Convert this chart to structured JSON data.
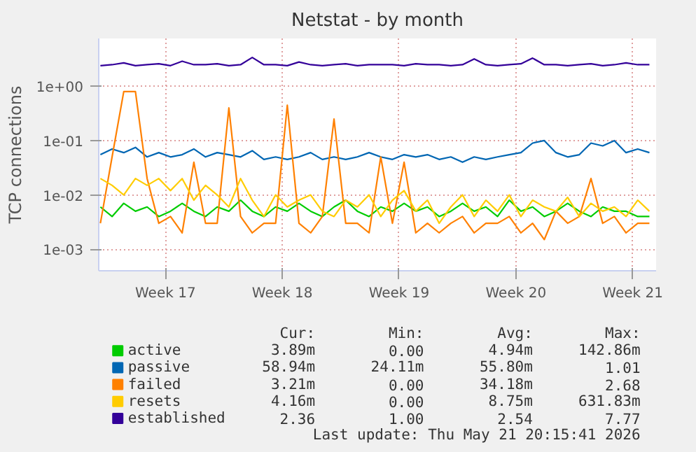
{
  "chart_data": {
    "type": "line",
    "title": "Netstat - by month",
    "ylabel": "TCP connections",
    "log": true,
    "grid": true,
    "legend": "bottom",
    "line_style": "solid",
    "xlim": [
      "2026-04-19T00:00",
      "2026-05-22T09:36"
    ],
    "xticks": [
      {
        "value": "2026-04-23",
        "label": "Week 17"
      },
      {
        "value": "2026-04-30",
        "label": "Week 18"
      },
      {
        "value": "2026-05-07",
        "label": "Week 19"
      },
      {
        "value": "2026-05-14",
        "label": "Week 20"
      },
      {
        "value": "2026-05-21",
        "label": "Week 21"
      }
    ],
    "ylim": [
      0.0004,
      7.6
    ],
    "yticks": [
      {
        "value": 0.001,
        "label": "1e-03"
      },
      {
        "value": 0.01,
        "label": "1e-02"
      },
      {
        "value": 0.1,
        "label": "1e-01"
      },
      {
        "value": 1,
        "label": "1e+00"
      }
    ],
    "x": [
      "2026-04-19T02:24",
      "2026-04-19T19:12",
      "2026-04-20T12:00",
      "2026-04-21T04:48",
      "2026-04-21T21:36",
      "2026-04-22T14:24",
      "2026-04-23T07:12",
      "2026-04-24T00:00",
      "2026-04-24T16:48",
      "2026-04-25T09:36",
      "2026-04-26T02:24",
      "2026-04-26T19:12",
      "2026-04-27T12:00",
      "2026-04-28T04:48",
      "2026-04-28T21:36",
      "2026-04-29T14:24",
      "2026-04-30T07:12",
      "2026-05-01T00:00",
      "2026-05-01T16:48",
      "2026-05-02T09:36",
      "2026-05-03T02:24",
      "2026-05-03T19:12",
      "2026-05-04T12:00",
      "2026-05-05T04:48",
      "2026-05-05T21:36",
      "2026-05-06T14:24",
      "2026-05-07T07:12",
      "2026-05-08T00:00",
      "2026-05-08T16:48",
      "2026-05-09T09:36",
      "2026-05-10T02:24",
      "2026-05-10T19:12",
      "2026-05-11T12:00",
      "2026-05-12T04:48",
      "2026-05-12T21:36",
      "2026-05-13T14:24",
      "2026-05-14T07:12",
      "2026-05-15T00:00",
      "2026-05-15T16:48",
      "2026-05-16T09:36",
      "2026-05-17T02:24",
      "2026-05-17T19:12",
      "2026-05-18T12:00",
      "2026-05-19T04:48",
      "2026-05-19T21:36",
      "2026-05-20T14:24",
      "2026-05-21T07:12",
      "2026-05-22T00:00"
    ],
    "series": [
      {
        "name": "active",
        "color": "#00cc00",
        "values": [
          0.006,
          0.004,
          0.007,
          0.005,
          0.006,
          0.004,
          0.005,
          0.007,
          0.005,
          0.004,
          0.006,
          0.005,
          0.008,
          0.005,
          0.004,
          0.006,
          0.005,
          0.007,
          0.005,
          0.004,
          0.006,
          0.008,
          0.005,
          0.004,
          0.006,
          0.005,
          0.007,
          0.005,
          0.006,
          0.004,
          0.005,
          0.007,
          0.005,
          0.006,
          0.004,
          0.008,
          0.005,
          0.006,
          0.004,
          0.005,
          0.007,
          0.005,
          0.004,
          0.006,
          0.005,
          0.005,
          0.004,
          0.004
        ]
      },
      {
        "name": "passive",
        "color": "#0066b3",
        "values": [
          0.055,
          0.07,
          0.06,
          0.075,
          0.05,
          0.06,
          0.05,
          0.055,
          0.07,
          0.05,
          0.06,
          0.055,
          0.05,
          0.065,
          0.045,
          0.05,
          0.045,
          0.05,
          0.06,
          0.045,
          0.05,
          0.045,
          0.05,
          0.06,
          0.05,
          0.045,
          0.055,
          0.05,
          0.055,
          0.045,
          0.05,
          0.04,
          0.05,
          0.045,
          0.05,
          0.055,
          0.06,
          0.09,
          0.1,
          0.06,
          0.05,
          0.055,
          0.09,
          0.08,
          0.1,
          0.06,
          0.07,
          0.06
        ]
      },
      {
        "name": "failed",
        "color": "#ff8000",
        "values": [
          0.003,
          0.05,
          0.8,
          0.8,
          0.02,
          0.003,
          0.004,
          0.002,
          0.04,
          0.003,
          0.003,
          0.4,
          0.004,
          0.002,
          0.003,
          0.003,
          0.45,
          0.003,
          0.002,
          0.004,
          0.25,
          0.003,
          0.003,
          0.002,
          0.05,
          0.003,
          0.04,
          0.002,
          0.003,
          0.002,
          0.003,
          0.004,
          0.002,
          0.003,
          0.003,
          0.004,
          0.002,
          0.003,
          0.0015,
          0.005,
          0.003,
          0.004,
          0.02,
          0.003,
          0.004,
          0.002,
          0.003,
          0.003
        ]
      },
      {
        "name": "resets",
        "color": "#ffcc00",
        "values": [
          0.02,
          0.015,
          0.01,
          0.02,
          0.015,
          0.02,
          0.012,
          0.02,
          0.008,
          0.015,
          0.01,
          0.006,
          0.02,
          0.008,
          0.004,
          0.01,
          0.006,
          0.008,
          0.01,
          0.005,
          0.004,
          0.008,
          0.006,
          0.01,
          0.004,
          0.008,
          0.012,
          0.005,
          0.008,
          0.003,
          0.006,
          0.01,
          0.004,
          0.008,
          0.005,
          0.01,
          0.004,
          0.008,
          0.006,
          0.005,
          0.009,
          0.004,
          0.007,
          0.005,
          0.006,
          0.004,
          0.008,
          0.005
        ]
      },
      {
        "name": "established",
        "color": "#330099",
        "values": [
          2.4,
          2.5,
          2.7,
          2.4,
          2.5,
          2.6,
          2.4,
          2.9,
          2.5,
          2.5,
          2.6,
          2.4,
          2.5,
          3.4,
          2.5,
          2.5,
          2.4,
          2.8,
          2.5,
          2.4,
          2.5,
          2.6,
          2.4,
          2.5,
          2.5,
          2.5,
          2.4,
          2.6,
          2.5,
          2.5,
          2.4,
          2.5,
          3.2,
          2.5,
          2.4,
          2.5,
          2.6,
          3.3,
          2.5,
          2.5,
          2.4,
          2.5,
          2.6,
          2.4,
          2.5,
          2.7,
          2.5,
          2.5
        ]
      }
    ],
    "annotations": [
      "Cur:",
      "Min:",
      "Avg:",
      "Max:",
      "3.89m",
      "0.00",
      "4.94m",
      "142.86m",
      "58.94m",
      "24.11m",
      "55.80m",
      "1.01",
      "3.21m",
      "0.00",
      "34.18m",
      "2.68",
      "4.16m",
      "0.00",
      "8.75m",
      "631.83m",
      "2.36",
      "1.00",
      "2.54",
      "7.77",
      "Last update: Thu May 21 20:15:41 2026"
    ]
  }
}
